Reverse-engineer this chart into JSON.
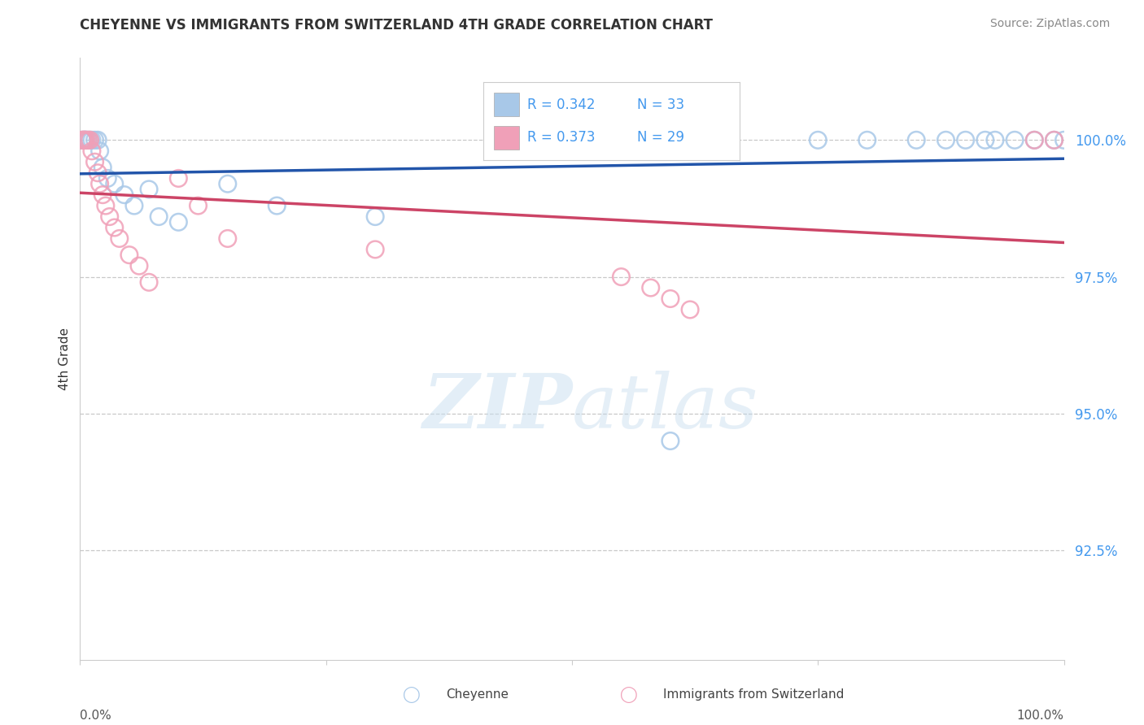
{
  "title": "CHEYENNE VS IMMIGRANTS FROM SWITZERLAND 4TH GRADE CORRELATION CHART",
  "source": "Source: ZipAtlas.com",
  "ylabel": "4th Grade",
  "ytick_values": [
    100.0,
    97.5,
    95.0,
    92.5
  ],
  "xlim": [
    0.0,
    100.0
  ],
  "ylim": [
    90.5,
    101.5
  ],
  "legend_R_blue": "R = 0.342",
  "legend_N_blue": "N = 33",
  "legend_R_pink": "R = 0.373",
  "legend_N_pink": "N = 29",
  "blue_color": "#A8C8E8",
  "pink_color": "#F0A0B8",
  "trendline_blue_color": "#2255AA",
  "trendline_pink_color": "#CC4466",
  "blue_x": [
    0.2,
    0.4,
    0.5,
    0.6,
    0.8,
    1.0,
    1.2,
    1.5,
    1.8,
    2.0,
    2.3,
    2.8,
    3.5,
    4.5,
    5.5,
    7.0,
    8.0,
    10.0,
    15.0,
    20.0,
    30.0,
    60.0,
    75.0,
    80.0,
    90.0,
    93.0,
    95.0,
    97.0,
    99.0,
    100.0,
    85.0,
    88.0,
    92.0
  ],
  "blue_y": [
    100.0,
    100.0,
    100.0,
    100.0,
    100.0,
    100.0,
    100.0,
    100.0,
    100.0,
    99.8,
    99.5,
    99.3,
    99.2,
    99.0,
    98.8,
    99.1,
    98.6,
    98.5,
    99.2,
    98.8,
    98.6,
    94.5,
    100.0,
    100.0,
    100.0,
    100.0,
    100.0,
    100.0,
    100.0,
    100.0,
    100.0,
    100.0,
    100.0
  ],
  "pink_x": [
    0.2,
    0.3,
    0.4,
    0.5,
    0.6,
    0.8,
    1.0,
    1.2,
    1.5,
    1.8,
    2.0,
    2.3,
    2.6,
    3.0,
    3.5,
    4.0,
    5.0,
    6.0,
    7.0,
    10.0,
    12.0,
    15.0,
    30.0,
    55.0,
    58.0,
    60.0,
    62.0,
    97.0,
    99.0
  ],
  "pink_y": [
    100.0,
    100.0,
    100.0,
    100.0,
    100.0,
    100.0,
    100.0,
    99.8,
    99.6,
    99.4,
    99.2,
    99.0,
    98.8,
    98.6,
    98.4,
    98.2,
    97.9,
    97.7,
    97.4,
    99.3,
    98.8,
    98.2,
    98.0,
    97.5,
    97.3,
    97.1,
    96.9,
    100.0,
    100.0
  ]
}
